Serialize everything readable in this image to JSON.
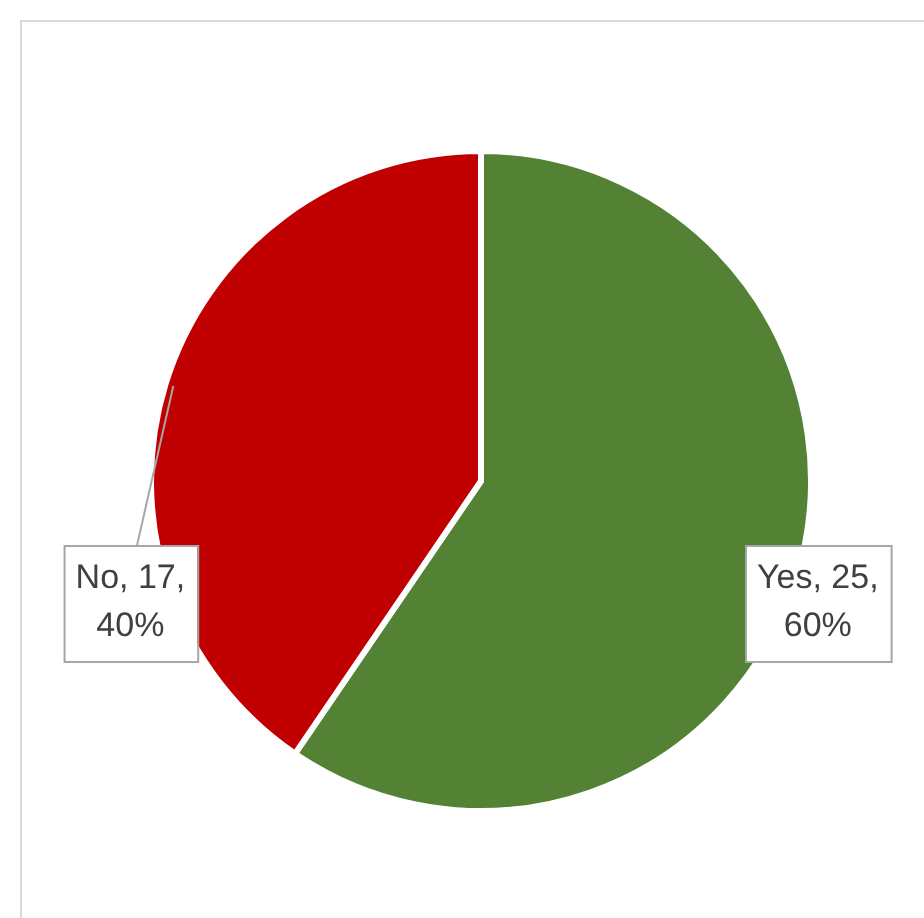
{
  "chart_data": {
    "type": "pie",
    "categories": [
      "Yes",
      "No"
    ],
    "values": [
      25,
      17
    ],
    "colors": [
      "#548235",
      "#c00000"
    ],
    "value_labels": [
      "25, 60%",
      "17, 40%"
    ],
    "legend": false
  }
}
